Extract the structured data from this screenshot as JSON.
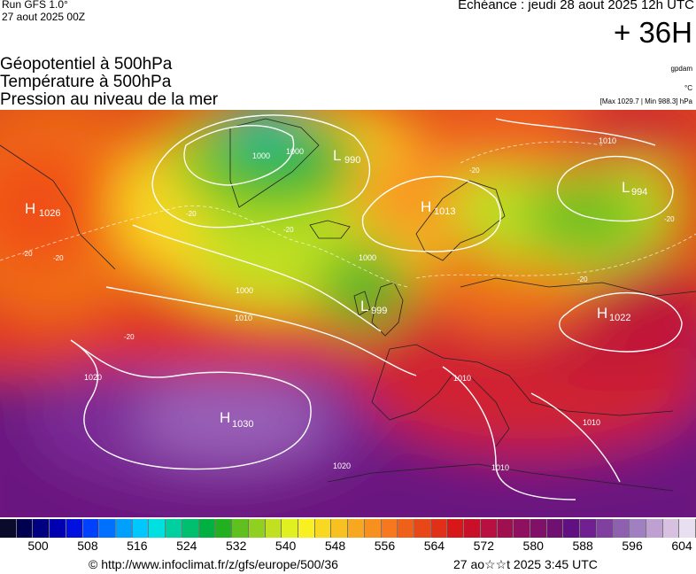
{
  "header": {
    "run": "Run GFS 1.0°",
    "run_date": "27 aout 2025 00Z",
    "echeance": "Echéance : jeudi 28 aout 2025 12h UTC",
    "lead": "+ 36H"
  },
  "variables": [
    "Géopotentiel à 500hPa",
    "Température à 500hPa",
    "Pression au niveau de la mer"
  ],
  "units": {
    "geopotential": "gpdam",
    "temperature": "°C"
  },
  "max_min": "[Max 1029.7 | Min 988.3] hPa",
  "pressure_centers": [
    {
      "type": "H",
      "value": "1026"
    },
    {
      "type": "L",
      "value": "990"
    },
    {
      "type": "H",
      "value": "1013"
    },
    {
      "type": "L",
      "value": "994"
    },
    {
      "type": "L",
      "value": "999"
    },
    {
      "type": "H",
      "value": "1022"
    },
    {
      "type": "H",
      "value": "1030"
    }
  ],
  "isobar_labels": [
    "1000",
    "1000",
    "1000",
    "1000",
    "1010",
    "1010",
    "1020",
    "1020",
    "1010",
    "1010",
    "1010"
  ],
  "temperature_labels": [
    "-20",
    "-20",
    "-20",
    "-20",
    "-20",
    "-20",
    "-20",
    "-20"
  ],
  "colorbar": {
    "ticks": [
      "500",
      "508",
      "516",
      "524",
      "532",
      "540",
      "548",
      "556",
      "564",
      "572",
      "580",
      "588",
      "596",
      "604"
    ],
    "colors": [
      "#0a0a2a",
      "#000050",
      "#000080",
      "#0000b0",
      "#0010e0",
      "#0040ff",
      "#0070ff",
      "#00a0ff",
      "#00c8ff",
      "#00e0e0",
      "#00d0a0",
      "#00c070",
      "#00b040",
      "#20b020",
      "#60c020",
      "#90d020",
      "#c0e020",
      "#e0f020",
      "#f8f020",
      "#f8d820",
      "#f8c020",
      "#f8a820",
      "#f89020",
      "#f87820",
      "#f06018",
      "#e84818",
      "#e03018",
      "#d81818",
      "#c81028",
      "#b81040",
      "#a01050",
      "#901060",
      "#801068",
      "#701070",
      "#601080",
      "#702090",
      "#8040a0",
      "#9060b0",
      "#a080c0",
      "#c0a0d0",
      "#d8c0e0",
      "#e8e0f0"
    ]
  },
  "footer": {
    "url": "© http://www.infoclimat.fr/z/gfs/europe/500/36",
    "date": "27 ao☆☆t 2025  3:45 UTC"
  }
}
